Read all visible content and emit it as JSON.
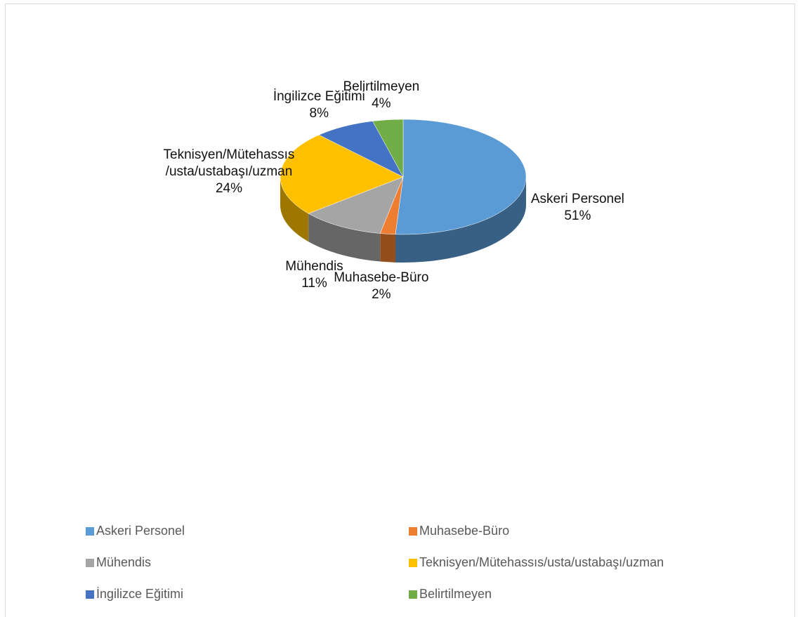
{
  "chart_data": {
    "type": "pie3d",
    "categories": [
      "Askeri Personel",
      "Muhasebe-Büro",
      "Mühendis",
      "Teknisyen/Mütehassıs/usta/ustabaşı/uzman",
      "İngilizce Eğitimi",
      "Belirtilmeyen"
    ],
    "values": [
      51,
      2,
      11,
      24,
      8,
      4
    ],
    "value_labels": [
      "51%",
      "2%",
      "11%",
      "24%",
      "8%",
      "4%"
    ],
    "colors": [
      "#5b9bd5",
      "#ed7d31",
      "#a5a5a5",
      "#ffc000",
      "#4472c4",
      "#70ad47"
    ],
    "legend": "bottom"
  }
}
